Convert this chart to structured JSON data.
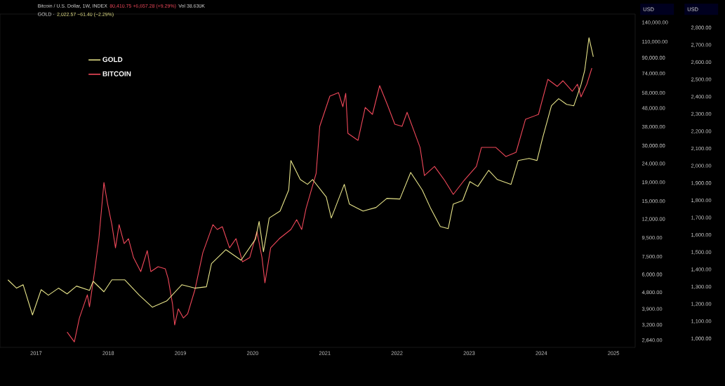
{
  "chart_data": {
    "type": "line",
    "annotations": [
      "Bitcoin / U.S. Dollar, 1W, INDEX",
      "80,410.75 +6,657.28 (+9.29%)",
      "Vol 38.630K",
      "GOLD ·",
      "2,022.57 −61.40 (−2.29%)"
    ],
    "ylabel": "USD",
    "y2label": "USD",
    "xlim": [
      2016.5,
      2025.3
    ],
    "xticks": [
      2017,
      2018,
      2019,
      2020,
      2021,
      2022,
      2023,
      2024,
      2025
    ],
    "log": "y",
    "ylim": [
      2420,
      156000
    ],
    "yticks": [
      {
        "value": 2640,
        "label": "2,640.00"
      },
      {
        "value": 3200,
        "label": "3,200.00"
      },
      {
        "value": 3900,
        "label": "3,900.00"
      },
      {
        "value": 4800,
        "label": "4,800.00"
      },
      {
        "value": 6000,
        "label": "6,000.00"
      },
      {
        "value": 7500,
        "label": "7,500.00"
      },
      {
        "value": 9500,
        "label": "9,500.00"
      },
      {
        "value": 12000,
        "label": "12,000.00"
      },
      {
        "value": 15000,
        "label": "15,000.00"
      },
      {
        "value": 19000,
        "label": "19,000.00"
      },
      {
        "value": 24000,
        "label": "24,000.00"
      },
      {
        "value": 30000,
        "label": "30,000.00"
      },
      {
        "value": 38000,
        "label": "38,000.00"
      },
      {
        "value": 48000,
        "label": "48,000.00"
      },
      {
        "value": 58000,
        "label": "58,000.00"
      },
      {
        "value": 74000,
        "label": "74,000.00"
      },
      {
        "value": 90000,
        "label": "90,000.00"
      },
      {
        "value": 110000,
        "label": "110,000.00"
      },
      {
        "value": 140000,
        "label": "140,000.00"
      }
    ],
    "y2lim": [
      950,
      2880
    ],
    "y2ticks": [
      {
        "value": 1000,
        "label": "1,000.00"
      },
      {
        "value": 1100,
        "label": "1,100.00"
      },
      {
        "value": 1200,
        "label": "1,200.00"
      },
      {
        "value": 1300,
        "label": "1,300.00"
      },
      {
        "value": 1400,
        "label": "1,400.00"
      },
      {
        "value": 1500,
        "label": "1,500.00"
      },
      {
        "value": 1600,
        "label": "1,600.00"
      },
      {
        "value": 1700,
        "label": "1,700.00"
      },
      {
        "value": 1800,
        "label": "1,800.00"
      },
      {
        "value": 1900,
        "label": "1,900.00"
      },
      {
        "value": 2000,
        "label": "2,000.00"
      },
      {
        "value": 2100,
        "label": "2,100.00"
      },
      {
        "value": 2200,
        "label": "2,200.00"
      },
      {
        "value": 2300,
        "label": "2,300.00"
      },
      {
        "value": 2400,
        "label": "2,400.00"
      },
      {
        "value": 2500,
        "label": "2,500.00"
      },
      {
        "value": 2600,
        "label": "2,600.00"
      },
      {
        "value": 2700,
        "label": "2,700.00"
      },
      {
        "value": 2800,
        "label": "2,800.00"
      }
    ],
    "legend": "top left",
    "series": [
      {
        "name": "GOLD",
        "color": "#e8e58a",
        "axis": "y2",
        "x": [
          2016.61,
          2016.73,
          2016.82,
          2016.95,
          2017.07,
          2017.17,
          2017.31,
          2017.43,
          2017.56,
          2017.74,
          2017.79,
          2017.94,
          2018.05,
          2018.23,
          2018.43,
          2018.61,
          2018.81,
          2019.02,
          2019.2,
          2019.36,
          2019.43,
          2019.63,
          2019.84,
          2020.04,
          2020.09,
          2020.15,
          2020.23,
          2020.38,
          2020.5,
          2020.53,
          2020.66,
          2020.76,
          2020.83,
          2021.02,
          2021.09,
          2021.27,
          2021.34,
          2021.53,
          2021.71,
          2021.86,
          2022.04,
          2022.19,
          2022.35,
          2022.47,
          2022.6,
          2022.71,
          2022.78,
          2022.91,
          2023.01,
          2023.12,
          2023.27,
          2023.39,
          2023.58,
          2023.68,
          2023.83,
          2023.94,
          2024.02,
          2024.14,
          2024.24,
          2024.35,
          2024.45,
          2024.55,
          2024.6,
          2024.66,
          2024.72
        ],
        "values": [
          1341,
          1293,
          1313,
          1138,
          1284,
          1252,
          1293,
          1260,
          1305,
          1280,
          1333,
          1272,
          1341,
          1341,
          1252,
          1183,
          1219,
          1313,
          1293,
          1301,
          1435,
          1516,
          1455,
          1577,
          1679,
          1504,
          1699,
          1739,
          1861,
          2032,
          1922,
          1894,
          1922,
          1821,
          1699,
          1894,
          1780,
          1739,
          1760,
          1813,
          1809,
          1963,
          1861,
          1752,
          1650,
          1638,
          1780,
          1800,
          1910,
          1882,
          1975,
          1922,
          1894,
          2032,
          2044,
          2032,
          2166,
          2349,
          2390,
          2357,
          2349,
          2471,
          2552,
          2743,
          2633
        ]
      },
      {
        "name": "BITCOIN",
        "color": "#f0485a",
        "axis": "y",
        "x": [
          2017.43,
          2017.53,
          2017.6,
          2017.71,
          2017.74,
          2017.81,
          2017.87,
          2017.94,
          2017.99,
          2018.05,
          2018.1,
          2018.15,
          2018.22,
          2018.28,
          2018.35,
          2018.45,
          2018.54,
          2018.59,
          2018.69,
          2018.79,
          2018.83,
          2018.89,
          2018.92,
          2018.97,
          2019.04,
          2019.1,
          2019.2,
          2019.31,
          2019.45,
          2019.51,
          2019.58,
          2019.68,
          2019.77,
          2019.86,
          2019.96,
          2020.06,
          2020.13,
          2020.17,
          2020.25,
          2020.37,
          2020.53,
          2020.61,
          2020.68,
          2020.74,
          2020.88,
          2020.93,
          2021.07,
          2021.19,
          2021.25,
          2021.29,
          2021.32,
          2021.46,
          2021.56,
          2021.66,
          2021.76,
          2021.87,
          2021.97,
          2022.07,
          2022.14,
          2022.32,
          2022.38,
          2022.52,
          2022.66,
          2022.78,
          2022.93,
          2023.1,
          2023.17,
          2023.37,
          2023.51,
          2023.65,
          2023.78,
          2023.96,
          2024.09,
          2024.22,
          2024.3,
          2024.43,
          2024.5,
          2024.55,
          2024.63,
          2024.7
        ],
        "values": [
          2933,
          2594,
          3496,
          4668,
          4021,
          6238,
          9419,
          19008,
          14600,
          11220,
          8400,
          11220,
          8860,
          9419,
          7432,
          6238,
          8113,
          6238,
          6632,
          6460,
          5713,
          4166,
          3202,
          3918,
          3496,
          3685,
          4966,
          7901,
          11220,
          10560,
          10935,
          8400,
          9419,
          7050,
          7432,
          10285,
          7432,
          5420,
          8400,
          9419,
          10560,
          11935,
          10560,
          13735,
          21300,
          38330,
          55900,
          58370,
          49000,
          57900,
          35110,
          32160,
          48570,
          44500,
          63760,
          49880,
          39360,
          38330,
          45670,
          29450,
          20730,
          23240,
          19510,
          16370,
          19510,
          23240,
          29450,
          29450,
          26270,
          27710,
          41840,
          44500,
          68980,
          63170,
          67790,
          59430,
          64890,
          55410,
          64890,
          79410
        ]
      }
    ]
  }
}
